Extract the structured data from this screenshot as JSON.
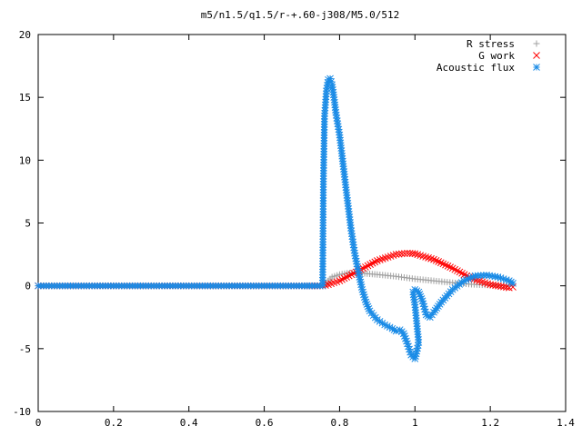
{
  "chart_data": {
    "type": "scatter",
    "title": "m5/n1.5/q1.5/r-+.60-j308/M5.0/512",
    "xlabel": "",
    "ylabel": "",
    "xlim": [
      0,
      1.4
    ],
    "ylim": [
      -10,
      20
    ],
    "xticks": [
      "0",
      "0.2",
      "0.4",
      "0.6",
      "0.8",
      "1",
      "1.2",
      "1.4"
    ],
    "yticks": [
      "-10",
      "-5",
      "0",
      "5",
      "10",
      "15",
      "20"
    ],
    "grid": false,
    "legend": "top-right",
    "series": [
      {
        "name": "R stress",
        "marker": "plus",
        "color": "#a0a0a0",
        "points": [
          [
            0.0,
            0.0
          ],
          [
            0.1,
            0.0
          ],
          [
            0.2,
            0.0
          ],
          [
            0.3,
            0.0
          ],
          [
            0.4,
            0.0
          ],
          [
            0.5,
            0.0
          ],
          [
            0.6,
            0.0
          ],
          [
            0.7,
            0.0
          ],
          [
            0.755,
            0.0
          ],
          [
            0.76,
            0.1
          ],
          [
            0.77,
            0.4
          ],
          [
            0.78,
            0.7
          ],
          [
            0.8,
            0.9
          ],
          [
            0.82,
            1.0
          ],
          [
            0.84,
            1.05
          ],
          [
            0.86,
            1.0
          ],
          [
            0.9,
            0.9
          ],
          [
            0.95,
            0.75
          ],
          [
            1.0,
            0.55
          ],
          [
            1.05,
            0.4
          ],
          [
            1.1,
            0.25
          ],
          [
            1.15,
            0.12
          ],
          [
            1.2,
            0.05
          ],
          [
            1.25,
            0.0
          ]
        ]
      },
      {
        "name": "G work",
        "marker": "cross",
        "color": "#ff0000",
        "points": [
          [
            0.0,
            0.0
          ],
          [
            0.1,
            0.0
          ],
          [
            0.2,
            0.0
          ],
          [
            0.3,
            0.0
          ],
          [
            0.4,
            0.0
          ],
          [
            0.5,
            0.0
          ],
          [
            0.6,
            0.0
          ],
          [
            0.7,
            0.0
          ],
          [
            0.755,
            0.0
          ],
          [
            0.77,
            0.1
          ],
          [
            0.8,
            0.4
          ],
          [
            0.85,
            1.2
          ],
          [
            0.9,
            2.0
          ],
          [
            0.95,
            2.5
          ],
          [
            0.98,
            2.6
          ],
          [
            1.0,
            2.55
          ],
          [
            1.05,
            2.1
          ],
          [
            1.1,
            1.4
          ],
          [
            1.15,
            0.6
          ],
          [
            1.2,
            0.1
          ],
          [
            1.25,
            -0.15
          ],
          [
            1.26,
            -0.1
          ]
        ]
      },
      {
        "name": "Acoustic flux",
        "marker": "star",
        "color": "#1a8be6",
        "points": [
          [
            0.0,
            0.0
          ],
          [
            0.1,
            0.0
          ],
          [
            0.2,
            0.0
          ],
          [
            0.3,
            0.0
          ],
          [
            0.4,
            0.0
          ],
          [
            0.5,
            0.0
          ],
          [
            0.6,
            0.0
          ],
          [
            0.7,
            0.0
          ],
          [
            0.74,
            0.0
          ],
          [
            0.755,
            0.0
          ],
          [
            0.757,
            8.3
          ],
          [
            0.76,
            13.5
          ],
          [
            0.765,
            15.5
          ],
          [
            0.77,
            16.4
          ],
          [
            0.775,
            16.5
          ],
          [
            0.78,
            16.0
          ],
          [
            0.785,
            15.0
          ],
          [
            0.79,
            13.8
          ],
          [
            0.8,
            12.0
          ],
          [
            0.81,
            9.5
          ],
          [
            0.82,
            7.0
          ],
          [
            0.83,
            4.6
          ],
          [
            0.84,
            2.6
          ],
          [
            0.85,
            1.1
          ],
          [
            0.86,
            -0.3
          ],
          [
            0.87,
            -1.3
          ],
          [
            0.88,
            -2.0
          ],
          [
            0.9,
            -2.7
          ],
          [
            0.92,
            -3.1
          ],
          [
            0.94,
            -3.4
          ],
          [
            0.95,
            -3.6
          ],
          [
            0.96,
            -3.5
          ],
          [
            0.97,
            -3.8
          ],
          [
            0.98,
            -4.6
          ],
          [
            0.99,
            -5.5
          ],
          [
            1.0,
            -5.8
          ],
          [
            1.005,
            -5.2
          ],
          [
            1.01,
            -4.5
          ],
          [
            1.005,
            -3.0
          ],
          [
            1.0,
            -1.5
          ],
          [
            0.995,
            -0.5
          ],
          [
            1.0,
            -0.3
          ],
          [
            1.01,
            -0.5
          ],
          [
            1.02,
            -1.2
          ],
          [
            1.03,
            -2.3
          ],
          [
            1.04,
            -2.5
          ],
          [
            1.05,
            -2.1
          ],
          [
            1.07,
            -1.3
          ],
          [
            1.1,
            -0.3
          ],
          [
            1.13,
            0.4
          ],
          [
            1.16,
            0.8
          ],
          [
            1.19,
            0.85
          ],
          [
            1.22,
            0.7
          ],
          [
            1.25,
            0.4
          ],
          [
            1.26,
            0.2
          ]
        ]
      }
    ]
  }
}
